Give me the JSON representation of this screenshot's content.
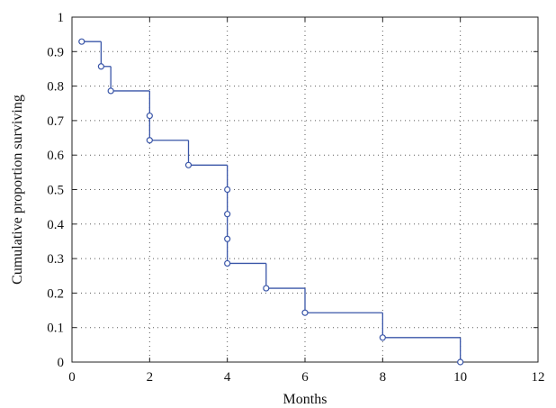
{
  "chart_data": {
    "type": "line",
    "style": "step",
    "title": "",
    "xlabel": "Months",
    "ylabel": "Cumulative proportion surviving",
    "xlim": [
      0,
      12
    ],
    "ylim": [
      0,
      1
    ],
    "x_ticks": [
      0,
      2,
      4,
      6,
      8,
      10,
      12
    ],
    "y_ticks": [
      0,
      0.1,
      0.2,
      0.3,
      0.4,
      0.5,
      0.6,
      0.7,
      0.8,
      0.9,
      1
    ],
    "grid": true,
    "series": [
      {
        "points": [
          {
            "x": 0.25,
            "y": 0.929
          },
          {
            "x": 0.75,
            "y": 0.857
          },
          {
            "x": 1,
            "y": 0.786
          },
          {
            "x": 2,
            "y": 0.714
          },
          {
            "x": 2,
            "y": 0.643
          },
          {
            "x": 3,
            "y": 0.571
          },
          {
            "x": 4,
            "y": 0.5
          },
          {
            "x": 4,
            "y": 0.429
          },
          {
            "x": 4,
            "y": 0.357
          },
          {
            "x": 4,
            "y": 0.286
          },
          {
            "x": 5,
            "y": 0.214
          },
          {
            "x": 6,
            "y": 0.143
          },
          {
            "x": 8,
            "y": 0.071
          },
          {
            "x": 10,
            "y": 0
          }
        ]
      }
    ],
    "colors": {
      "line": "#3a56a8",
      "marker_stroke": "#3a56a8"
    }
  }
}
